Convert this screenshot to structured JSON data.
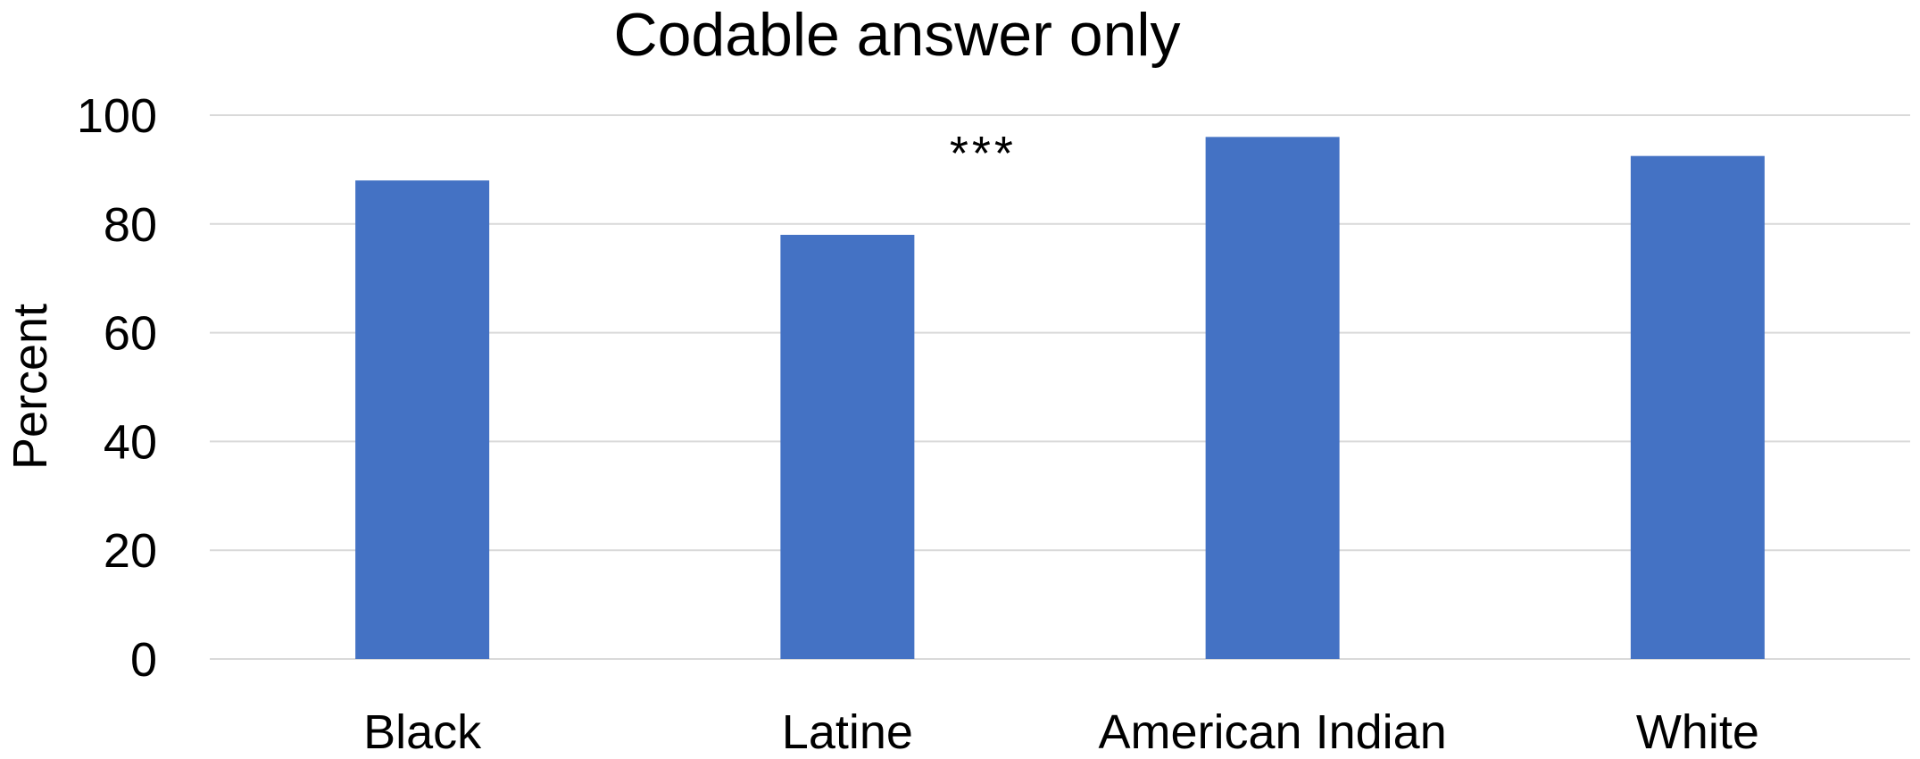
{
  "chart_data": {
    "type": "bar",
    "title": "Codable answer only",
    "xlabel": "",
    "ylabel": "Percent",
    "categories": [
      "Black",
      "Latine",
      "American Indian",
      "White"
    ],
    "values": [
      88,
      78,
      96,
      92.5
    ],
    "ylim": [
      0,
      100
    ],
    "yticks": [
      "0",
      "20",
      "40",
      "60",
      "80",
      "100"
    ],
    "annotations": [
      {
        "text": "***",
        "category": "Latine"
      }
    ],
    "grid": true,
    "legend": "none",
    "colors": {
      "bar": "#4472C4",
      "gridline": "#D9D9D9"
    }
  }
}
